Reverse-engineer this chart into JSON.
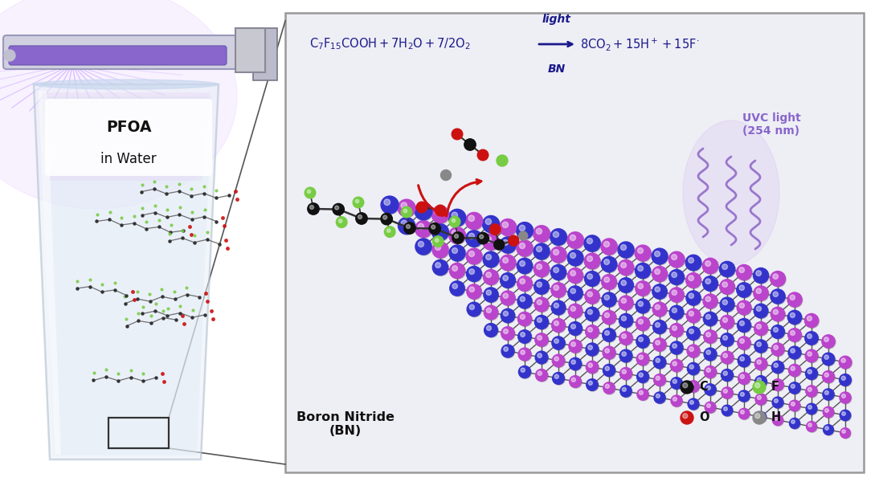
{
  "bg_color": "#ffffff",
  "panel_bg": "#eeeef5",
  "panel_border": "#999999",
  "equation_color": "#1a1a8c",
  "uvc_color": "#8866cc",
  "bn_label_color": "#111111",
  "legend_color": "#111111",
  "B_color": "#3333cc",
  "N_color": "#bb44cc",
  "pfoa_label": "PFOA\nin Water",
  "uvc_text": "UVC light\n(254 nm)",
  "bn_label": "Boron Nitride\n(BN)",
  "C_color": "#111111",
  "F_color": "#77cc44",
  "O_color": "#cc1111",
  "H_color": "#888888"
}
